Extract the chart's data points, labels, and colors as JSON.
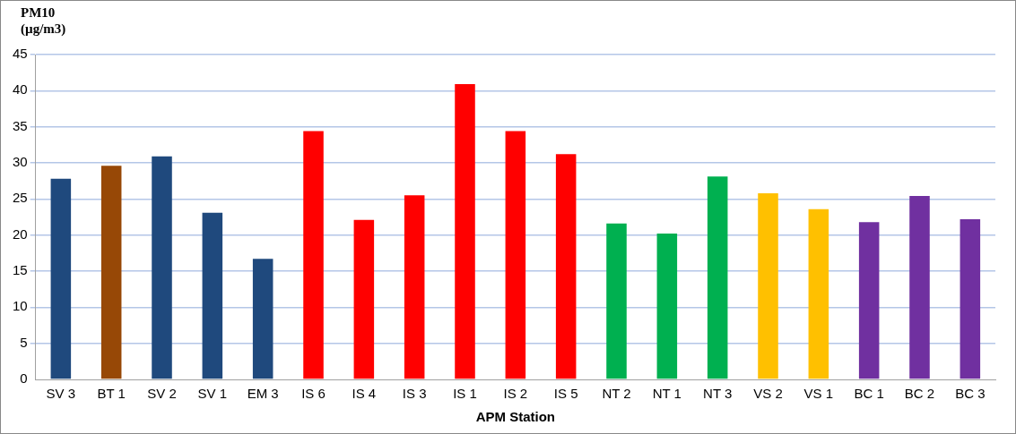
{
  "chart_data": {
    "type": "bar",
    "ylabel": "PM10\n(µg/m3)",
    "xlabel": "APM Station",
    "categories": [
      "SV 3",
      "BT 1",
      "SV 2",
      "SV 1",
      "EM 3",
      "IS 6",
      "IS 4",
      "IS 3",
      "IS 1",
      "IS 2",
      "IS 5",
      "NT 2",
      "NT 1",
      "NT 3",
      "VS 2",
      "VS 1",
      "BC 1",
      "BC 2",
      "BC 3"
    ],
    "values": [
      27.8,
      29.6,
      30.9,
      23.1,
      16.7,
      34.4,
      22.1,
      25.5,
      40.9,
      34.4,
      31.2,
      21.6,
      20.2,
      28.1,
      25.8,
      23.6,
      21.8,
      25.4,
      22.2
    ],
    "colors": [
      "#1f497d",
      "#974806",
      "#1f497d",
      "#1f497d",
      "#1f497d",
      "#ff0000",
      "#ff0000",
      "#ff0000",
      "#ff0000",
      "#ff0000",
      "#ff0000",
      "#00b050",
      "#00b050",
      "#00b050",
      "#ffc000",
      "#ffc000",
      "#7030a0",
      "#7030a0",
      "#7030a0"
    ],
    "ylim": [
      0,
      45
    ],
    "yticks": [
      0,
      5,
      10,
      15,
      20,
      25,
      30,
      35,
      40,
      45
    ],
    "grid": "y",
    "legend": false
  }
}
